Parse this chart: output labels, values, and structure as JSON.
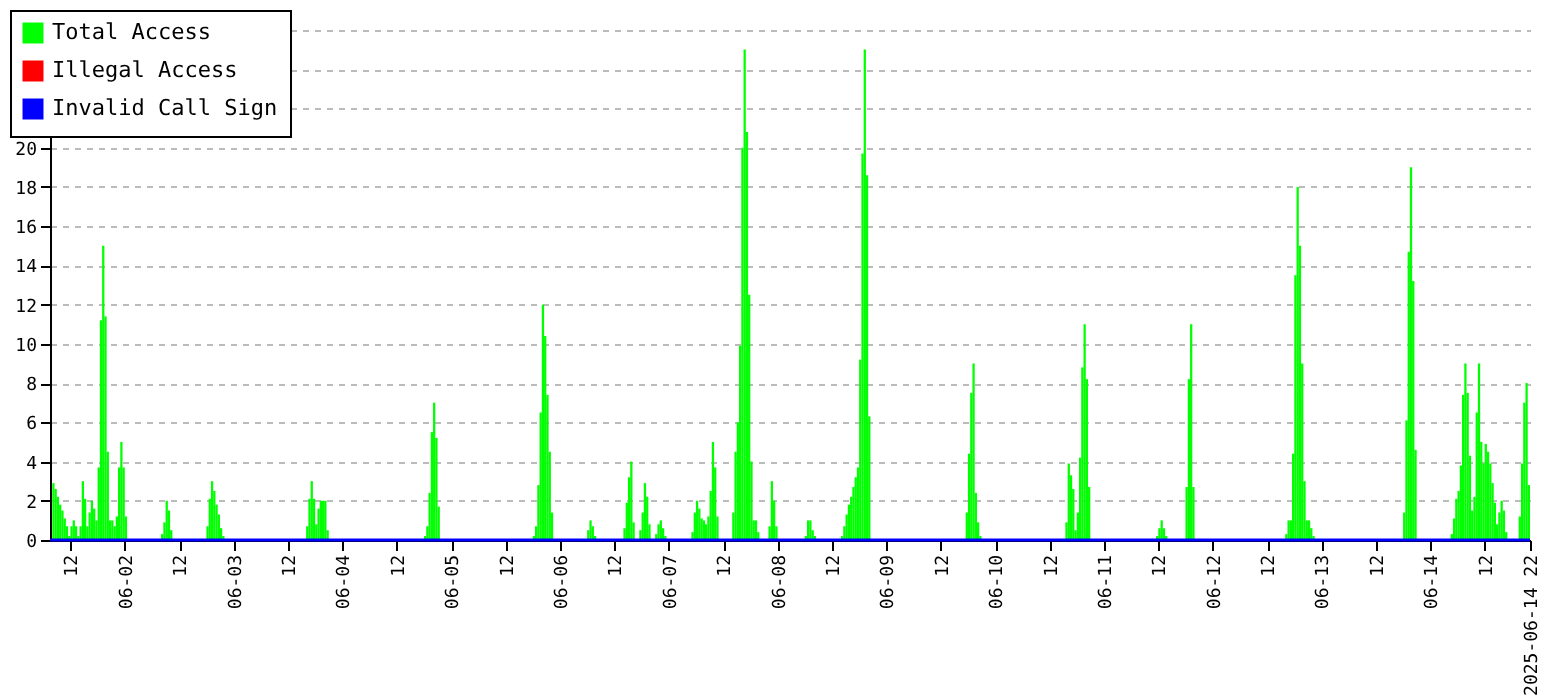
{
  "chart_data": {
    "type": "bar",
    "xlim": [
      "2025-06-01T07:30",
      "2025-06-14T22:00"
    ],
    "ylim": [
      0,
      26
    ],
    "yticks": [
      0,
      2,
      4,
      6,
      8,
      10,
      12,
      14,
      16,
      18,
      20,
      {
        "value": 22,
        "label": null
      },
      {
        "value": 24,
        "label": null
      },
      {
        "value": 26,
        "label": null
      }
    ],
    "xticks": [
      {
        "value": "2025-06-01T12:00",
        "label": "12"
      },
      {
        "value": "2025-06-02T00:00",
        "label": "06-02"
      },
      {
        "value": "2025-06-02T12:00",
        "label": "12"
      },
      {
        "value": "2025-06-03T00:00",
        "label": "06-03"
      },
      {
        "value": "2025-06-03T12:00",
        "label": "12"
      },
      {
        "value": "2025-06-04T00:00",
        "label": "06-04"
      },
      {
        "value": "2025-06-04T12:00",
        "label": "12"
      },
      {
        "value": "2025-06-05T00:00",
        "label": "06-05"
      },
      {
        "value": "2025-06-05T12:00",
        "label": "12"
      },
      {
        "value": "2025-06-06T00:00",
        "label": "06-06"
      },
      {
        "value": "2025-06-06T12:00",
        "label": "12"
      },
      {
        "value": "2025-06-07T00:00",
        "label": "06-07"
      },
      {
        "value": "2025-06-07T12:00",
        "label": "12"
      },
      {
        "value": "2025-06-08T00:00",
        "label": "06-08"
      },
      {
        "value": "2025-06-08T12:00",
        "label": "12"
      },
      {
        "value": "2025-06-09T00:00",
        "label": "06-09"
      },
      {
        "value": "2025-06-09T12:00",
        "label": "12"
      },
      {
        "value": "2025-06-10T00:00",
        "label": "06-10"
      },
      {
        "value": "2025-06-10T12:00",
        "label": "12"
      },
      {
        "value": "2025-06-11T00:00",
        "label": "06-11"
      },
      {
        "value": "2025-06-11T12:00",
        "label": "12"
      },
      {
        "value": "2025-06-12T00:00",
        "label": "06-12"
      },
      {
        "value": "2025-06-12T12:00",
        "label": "12"
      },
      {
        "value": "2025-06-13T00:00",
        "label": "06-13"
      },
      {
        "value": "2025-06-13T12:00",
        "label": "12"
      },
      {
        "value": "2025-06-14T00:00",
        "label": "06-14"
      },
      {
        "value": "2025-06-14T12:00",
        "label": "12"
      },
      {
        "value": "2025-06-14T22:00",
        "label": "2025-06-14 22"
      }
    ],
    "grid": "y",
    "legend": "top left",
    "series": [
      {
        "name": "Total Access",
        "color": "#00ff00",
        "x": [
          "2025-06-01T08:00",
          "2025-06-01T08:30",
          "2025-06-01T09:00",
          "2025-06-01T09:30",
          "2025-06-01T10:00",
          "2025-06-01T10:30",
          "2025-06-01T11:00",
          "2025-06-01T11:30",
          "2025-06-01T12:00",
          "2025-06-01T12:30",
          "2025-06-01T13:00",
          "2025-06-01T13:30",
          "2025-06-01T14:00",
          "2025-06-01T14:30",
          "2025-06-01T15:00",
          "2025-06-01T15:30",
          "2025-06-01T16:00",
          "2025-06-01T16:30",
          "2025-06-01T17:00",
          "2025-06-01T17:30",
          "2025-06-01T18:00",
          "2025-06-01T18:30",
          "2025-06-01T19:00",
          "2025-06-01T19:30",
          "2025-06-01T20:00",
          "2025-06-01T20:30",
          "2025-06-01T21:00",
          "2025-06-01T21:30",
          "2025-06-01T22:00",
          "2025-06-01T22:30",
          "2025-06-01T23:00",
          "2025-06-01T23:30",
          "2025-06-02T00:00",
          "2025-06-02T08:00",
          "2025-06-02T08:30",
          "2025-06-02T09:00",
          "2025-06-02T09:30",
          "2025-06-02T10:00",
          "2025-06-02T18:00",
          "2025-06-02T18:30",
          "2025-06-02T19:00",
          "2025-06-02T19:30",
          "2025-06-02T20:00",
          "2025-06-02T20:30",
          "2025-06-02T21:00",
          "2025-06-02T21:30",
          "2025-06-03T16:00",
          "2025-06-03T16:30",
          "2025-06-03T17:00",
          "2025-06-03T17:30",
          "2025-06-03T18:00",
          "2025-06-03T18:30",
          "2025-06-03T19:00",
          "2025-06-03T19:30",
          "2025-06-03T20:00",
          "2025-06-03T20:30",
          "2025-06-04T18:00",
          "2025-06-04T18:30",
          "2025-06-04T19:00",
          "2025-06-04T19:30",
          "2025-06-04T20:00",
          "2025-06-04T20:30",
          "2025-06-04T21:00",
          "2025-06-05T18:00",
          "2025-06-05T18:30",
          "2025-06-05T19:00",
          "2025-06-05T19:30",
          "2025-06-05T20:00",
          "2025-06-05T20:30",
          "2025-06-05T21:00",
          "2025-06-05T21:30",
          "2025-06-05T22:00",
          "2025-06-06T06:00",
          "2025-06-06T06:30",
          "2025-06-06T07:00",
          "2025-06-06T07:30",
          "2025-06-06T14:00",
          "2025-06-06T14:30",
          "2025-06-06T15:00",
          "2025-06-06T15:30",
          "2025-06-06T16:00",
          "2025-06-06T17:30",
          "2025-06-06T18:00",
          "2025-06-06T18:30",
          "2025-06-06T19:00",
          "2025-06-06T19:30",
          "2025-06-06T21:00",
          "2025-06-06T21:30",
          "2025-06-06T22:00",
          "2025-06-06T22:30",
          "2025-06-06T23:00",
          "2025-06-07T05:00",
          "2025-06-07T05:30",
          "2025-06-07T06:00",
          "2025-06-07T06:30",
          "2025-06-07T07:00",
          "2025-06-07T07:30",
          "2025-06-07T08:00",
          "2025-06-07T08:30",
          "2025-06-07T09:00",
          "2025-06-07T09:30",
          "2025-06-07T10:00",
          "2025-06-07T10:30",
          "2025-06-07T14:00",
          "2025-06-07T14:30",
          "2025-06-07T15:00",
          "2025-06-07T15:30",
          "2025-06-07T16:00",
          "2025-06-07T16:30",
          "2025-06-07T17:00",
          "2025-06-07T17:30",
          "2025-06-07T18:00",
          "2025-06-07T18:30",
          "2025-06-07T19:00",
          "2025-06-07T19:30",
          "2025-06-07T22:00",
          "2025-06-07T22:30",
          "2025-06-07T23:00",
          "2025-06-07T23:30",
          "2025-06-08T06:00",
          "2025-06-08T06:30",
          "2025-06-08T07:00",
          "2025-06-08T07:30",
          "2025-06-08T08:00",
          "2025-06-08T14:00",
          "2025-06-08T14:30",
          "2025-06-08T15:00",
          "2025-06-08T15:30",
          "2025-06-08T16:00",
          "2025-06-08T16:30",
          "2025-06-08T17:00",
          "2025-06-08T17:30",
          "2025-06-08T18:00",
          "2025-06-08T18:30",
          "2025-06-08T19:00",
          "2025-06-08T19:30",
          "2025-06-08T20:00",
          "2025-06-09T17:30",
          "2025-06-09T18:00",
          "2025-06-09T18:30",
          "2025-06-09T19:00",
          "2025-06-09T19:30",
          "2025-06-09T20:00",
          "2025-06-09T20:30",
          "2025-06-10T15:30",
          "2025-06-10T16:00",
          "2025-06-10T16:30",
          "2025-06-10T17:00",
          "2025-06-10T17:30",
          "2025-06-10T18:00",
          "2025-06-10T18:30",
          "2025-06-10T19:00",
          "2025-06-10T19:30",
          "2025-06-10T20:00",
          "2025-06-10T20:30",
          "2025-06-11T11:30",
          "2025-06-11T12:00",
          "2025-06-11T12:30",
          "2025-06-11T13:00",
          "2025-06-11T13:30",
          "2025-06-11T18:00",
          "2025-06-11T18:30",
          "2025-06-11T19:00",
          "2025-06-11T19:30",
          "2025-06-12T16:00",
          "2025-06-12T16:30",
          "2025-06-12T17:00",
          "2025-06-12T17:30",
          "2025-06-12T18:00",
          "2025-06-12T18:30",
          "2025-06-12T19:00",
          "2025-06-12T19:30",
          "2025-06-12T20:00",
          "2025-06-12T20:30",
          "2025-06-12T21:00",
          "2025-06-12T21:30",
          "2025-06-12T22:00",
          "2025-06-13T18:00",
          "2025-06-13T18:30",
          "2025-06-13T19:00",
          "2025-06-13T19:30",
          "2025-06-13T20:00",
          "2025-06-13T20:30",
          "2025-06-14T04:30",
          "2025-06-14T05:00",
          "2025-06-14T05:30",
          "2025-06-14T06:00",
          "2025-06-14T06:30",
          "2025-06-14T07:00",
          "2025-06-14T07:30",
          "2025-06-14T08:00",
          "2025-06-14T08:30",
          "2025-06-14T09:00",
          "2025-06-14T09:30",
          "2025-06-14T10:00",
          "2025-06-14T10:30",
          "2025-06-14T11:00",
          "2025-06-14T11:30",
          "2025-06-14T12:00",
          "2025-06-14T12:30",
          "2025-06-14T13:00",
          "2025-06-14T13:30",
          "2025-06-14T14:00",
          "2025-06-14T14:30",
          "2025-06-14T15:00",
          "2025-06-14T15:30",
          "2025-06-14T16:00",
          "2025-06-14T16:30",
          "2025-06-14T19:30",
          "2025-06-14T20:00",
          "2025-06-14T20:30",
          "2025-06-14T21:00",
          "2025-06-14T21:30"
        ],
        "values": [
          2.9,
          2.6,
          2.2,
          1.8,
          1.5,
          1.1,
          0.7,
          0.2,
          0.7,
          1,
          0.7,
          0.2,
          0.7,
          3,
          2.1,
          0.7,
          1.4,
          2,
          1.6,
          1,
          3.7,
          11.2,
          15,
          11.4,
          4.5,
          1,
          1,
          0.7,
          1.2,
          3.7,
          5,
          3.7,
          1.2,
          0.3,
          0.9,
          2,
          1.5,
          0.5,
          0.7,
          2.1,
          3,
          2.5,
          1.8,
          1.3,
          0.6,
          0.2,
          0.7,
          2.1,
          3,
          2.1,
          0.8,
          1.6,
          2,
          2,
          2,
          0.5,
          0.2,
          0.7,
          2.4,
          5.5,
          7,
          5.2,
          1.7,
          0.2,
          0.7,
          2.8,
          6.5,
          12,
          10.4,
          7.4,
          4.5,
          1.4,
          0.5,
          1,
          0.7,
          0.2,
          0.6,
          1.9,
          3.2,
          4,
          0.9,
          0.5,
          1.4,
          2.9,
          2.2,
          0.8,
          0.3,
          0.8,
          1,
          0.6,
          0.2,
          0.4,
          1.4,
          2,
          1.6,
          1.1,
          1,
          0.8,
          1.2,
          2.5,
          5,
          3.7,
          1.2,
          1.4,
          4.5,
          6,
          9.9,
          20,
          25,
          20.8,
          12.5,
          4,
          1,
          1,
          0.4,
          0.7,
          3,
          2,
          0.7,
          0.2,
          1,
          1,
          0.5,
          0.2,
          0.2,
          0.7,
          1.3,
          1.8,
          2.2,
          2.7,
          3.2,
          3.7,
          9.2,
          19.7,
          25,
          18.6,
          6.3,
          1.4,
          4.4,
          7.5,
          9,
          2.4,
          0.9,
          0.2,
          0.9,
          3.9,
          3.3,
          2.6,
          0.5,
          1.4,
          4.2,
          8.8,
          11,
          8.2,
          2.7,
          0.2,
          0.6,
          1,
          0.6,
          0.2,
          2.7,
          8.2,
          11,
          2.7,
          0.3,
          1,
          1,
          4.4,
          13.5,
          18,
          15,
          9,
          3,
          1,
          1,
          0.6,
          0.2,
          1.4,
          6.1,
          14.7,
          19,
          13.2,
          4.6,
          0.3,
          1.1,
          2.1,
          2.5,
          3.8,
          7.4,
          9,
          7.5,
          4.3,
          1.5,
          2.2,
          6.5,
          9,
          5,
          3.9,
          4.9,
          4.5,
          3.9,
          2.9,
          1.9,
          0.8,
          1.4,
          2,
          1.5,
          0.4,
          1.2,
          3.9,
          7,
          8,
          2.8
        ]
      },
      {
        "name": "Illegal Access",
        "color": "#ff0000",
        "type": "line"
      },
      {
        "name": "Invalid Call Sign",
        "color": "#0000ff",
        "type": "line",
        "x": [
          "2025-06-01T07:30",
          "2025-06-14T22:00"
        ],
        "values": [
          0,
          0
        ]
      }
    ]
  }
}
